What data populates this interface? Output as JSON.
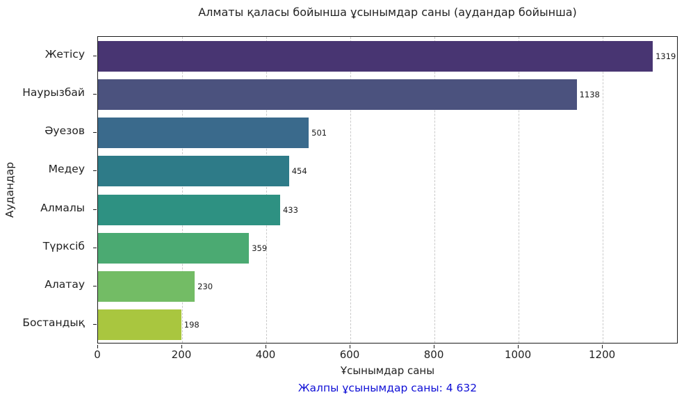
{
  "chart_data": {
    "type": "bar",
    "orientation": "horizontal",
    "title": "Алматы қаласы бойынша ұсынымдар саны (аудандар бойынша)",
    "xlabel": "Ұсынымдар саны",
    "ylabel": "Аудандар",
    "categories": [
      "Жетісу",
      "Наурызбай",
      "Әуезов",
      "Медеу",
      "Алмалы",
      "Түрксіб",
      "Алатау",
      "Бостандық"
    ],
    "values": [
      1319,
      1138,
      501,
      454,
      433,
      359,
      230,
      198
    ],
    "bar_value_labels": [
      "1319",
      "1138",
      "501",
      "454",
      "433",
      "359",
      "230",
      "198"
    ],
    "bar_colors": [
      "#483572",
      "#4B527E",
      "#3A6A8C",
      "#2E7B88",
      "#2E9182",
      "#4BAA72",
      "#73BC65",
      "#A9C63F"
    ],
    "xticks": [
      0,
      200,
      400,
      600,
      800,
      1000,
      1200
    ],
    "xtick_labels": [
      "0",
      "200",
      "400",
      "600",
      "800",
      "1000",
      "1200"
    ],
    "xlim": [
      0,
      1380
    ],
    "grid": "vertical-dashed",
    "legend": "none",
    "palette": "viridis",
    "total": 4632,
    "total_label": "Жалпы ұсынымдар саны: 4 632",
    "total_label_color": "#0f0fd6",
    "spine_color": "#1a1a1a",
    "gridline_color": "#c9c9c9"
  }
}
